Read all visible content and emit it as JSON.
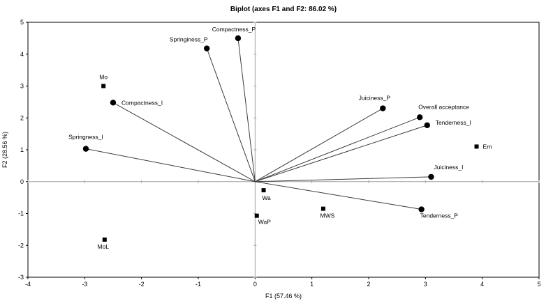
{
  "chart_data": {
    "type": "scatter",
    "title": "Biplot (axes F1 and F2: 86.02 %)",
    "xlabel": "F1 (57.46 %)",
    "ylabel": "F2 (28.56 %)",
    "xlim": [
      -4,
      5
    ],
    "ylim": [
      -3,
      5
    ],
    "xticks": [
      "-4",
      "-3",
      "-2",
      "-1",
      "0",
      "1",
      "2",
      "3",
      "4",
      "5"
    ],
    "yticks": [
      "-3",
      "-2",
      "-1",
      "0",
      "1",
      "2",
      "3",
      "4",
      "5"
    ],
    "grid": false,
    "variables": [
      {
        "label": "Compactness_P",
        "x": -0.3,
        "y": 4.5
      },
      {
        "label": "Springiness_P",
        "x": -0.85,
        "y": 4.18
      },
      {
        "label": "Compactness_I",
        "x": -2.5,
        "y": 2.48
      },
      {
        "label": "Springness_I",
        "x": -2.98,
        "y": 1.03
      },
      {
        "label": "Juiciness_P",
        "x": 2.25,
        "y": 2.3
      },
      {
        "label": "Overall acceptance",
        "x": 2.9,
        "y": 2.02
      },
      {
        "label": "Tenderness_I",
        "x": 3.03,
        "y": 1.77
      },
      {
        "label": "Juiciness_I",
        "x": 3.1,
        "y": 0.15
      },
      {
        "label": "Tenderness_P",
        "x": 2.93,
        "y": -0.87
      }
    ],
    "observations": [
      {
        "label": "Mo",
        "x": -2.67,
        "y": 3.0
      },
      {
        "label": "Em",
        "x": 3.9,
        "y": 1.1
      },
      {
        "label": "Wa",
        "x": 0.15,
        "y": -0.27
      },
      {
        "label": "WaP",
        "x": 0.03,
        "y": -1.07
      },
      {
        "label": "MWS",
        "x": 1.2,
        "y": -0.85
      },
      {
        "label": "MoL",
        "x": -2.65,
        "y": -1.82
      }
    ]
  }
}
